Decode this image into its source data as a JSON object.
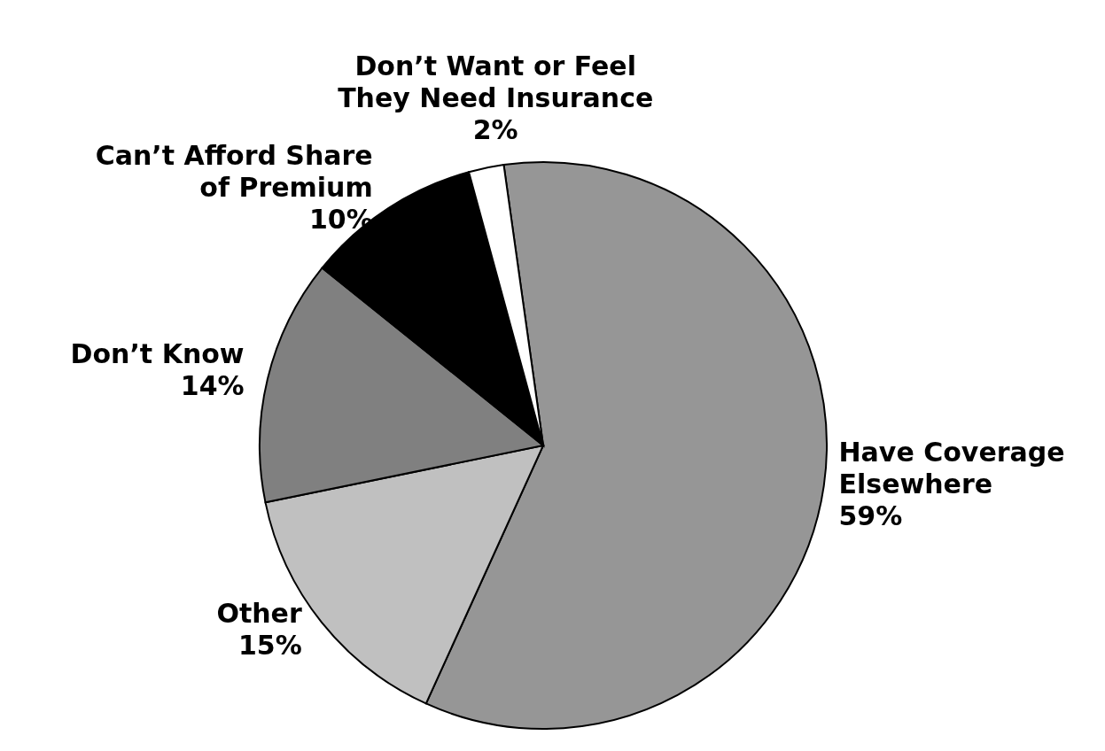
{
  "chart_data": {
    "type": "pie",
    "categories": [
      "Have Coverage Elsewhere",
      "Other",
      "Don’t Know",
      "Can’t Afford Share of Premium",
      "Don’t Want or Feel They Need Insurance"
    ],
    "values": [
      59,
      15,
      14,
      10,
      2
    ],
    "value_labels": [
      "59%",
      "15%",
      "14%",
      "10%",
      "2%"
    ],
    "colors": [
      "#969696",
      "#c0c0c0",
      "#808080",
      "#000000",
      "#ffffff"
    ],
    "legend": false
  }
}
